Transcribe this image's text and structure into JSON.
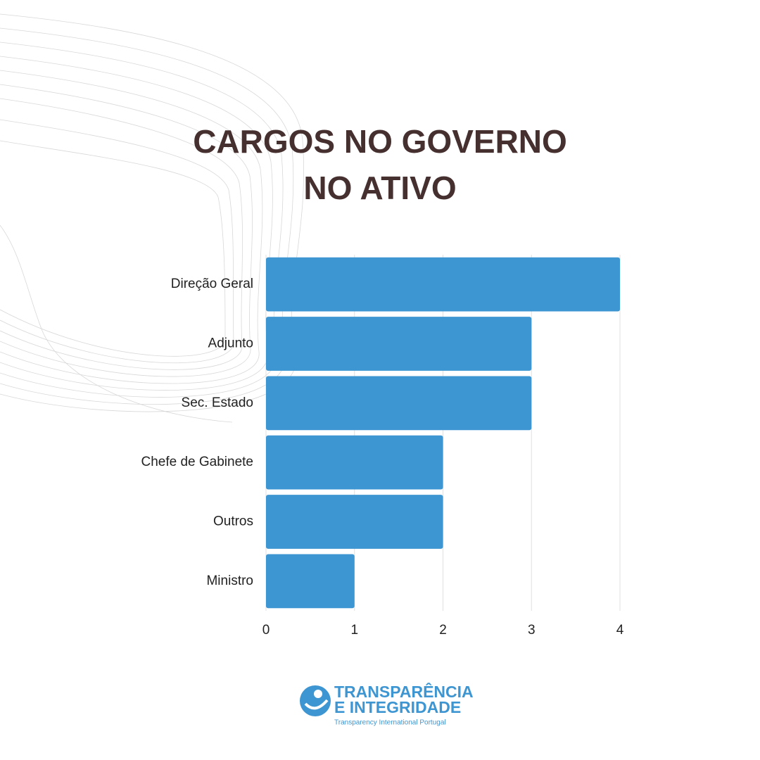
{
  "chart_data": {
    "type": "bar",
    "orientation": "horizontal",
    "title": [
      "CARGOS NO GOVERNO",
      "NO ATIVO"
    ],
    "categories": [
      "Direção Geral",
      "Adjunto",
      "Sec. Estado",
      "Chefe de Gabinete",
      "Outros",
      "Ministro"
    ],
    "values": [
      4,
      3,
      3,
      2,
      2,
      1
    ],
    "color": "#3d95d1",
    "xlim": [
      0,
      4
    ],
    "xticks": [
      0,
      1,
      2,
      3,
      4
    ],
    "grid": true
  },
  "logo": {
    "line1": "TRANSPARÊNCIA",
    "line2": "E INTEGRIDADE",
    "tagline": "Transparency International Portugal"
  }
}
